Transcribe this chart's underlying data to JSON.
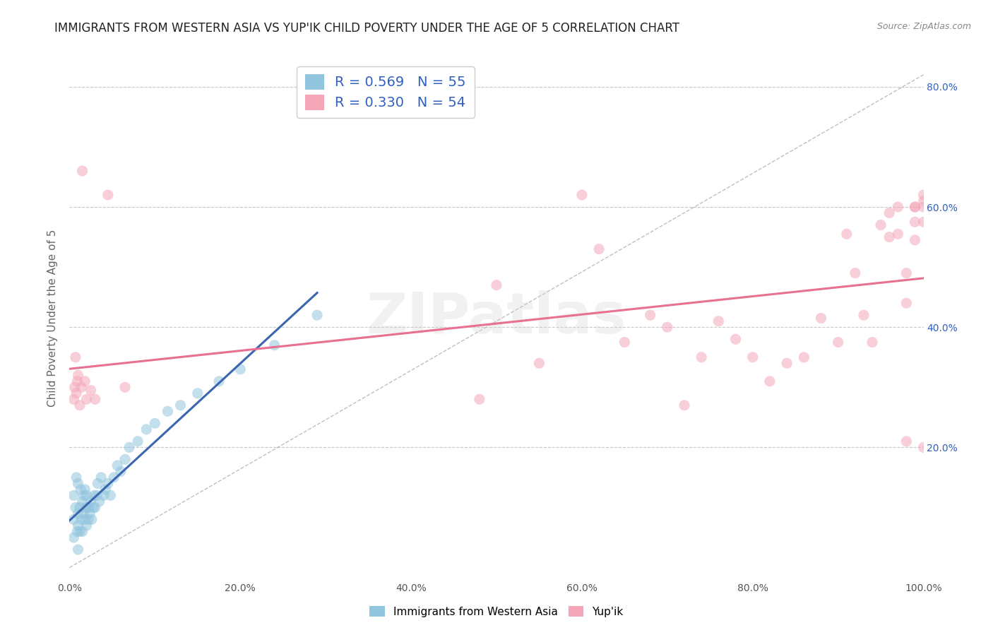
{
  "title": "IMMIGRANTS FROM WESTERN ASIA VS YUP'IK CHILD POVERTY UNDER THE AGE OF 5 CORRELATION CHART",
  "source": "Source: ZipAtlas.com",
  "ylabel": "Child Poverty Under the Age of 5",
  "legend_label1": "Immigrants from Western Asia",
  "legend_label2": "Yup'ik",
  "r1": 0.569,
  "n1": 55,
  "r2": 0.33,
  "n2": 54,
  "color_blue": "#92c5de",
  "color_pink": "#f4a6b8",
  "xlim": [
    0.0,
    1.0
  ],
  "ylim": [
    -0.02,
    0.85
  ],
  "xticks": [
    0.0,
    0.2,
    0.4,
    0.6,
    0.8,
    1.0
  ],
  "yticks": [
    0.0,
    0.2,
    0.4,
    0.6,
    0.8
  ],
  "xticklabels": [
    "0.0%",
    "20.0%",
    "40.0%",
    "60.0%",
    "80.0%",
    "100.0%"
  ],
  "yticklabels_right": [
    "",
    "20.0%",
    "40.0%",
    "60.0%",
    "80.0%"
  ],
  "blue_scatter_x": [
    0.005,
    0.005,
    0.005,
    0.007,
    0.008,
    0.009,
    0.01,
    0.01,
    0.01,
    0.01,
    0.012,
    0.012,
    0.013,
    0.014,
    0.015,
    0.015,
    0.016,
    0.017,
    0.018,
    0.018,
    0.019,
    0.02,
    0.02,
    0.021,
    0.022,
    0.023,
    0.024,
    0.025,
    0.026,
    0.028,
    0.029,
    0.03,
    0.032,
    0.033,
    0.035,
    0.037,
    0.04,
    0.042,
    0.045,
    0.048,
    0.052,
    0.056,
    0.06,
    0.065,
    0.07,
    0.08,
    0.09,
    0.1,
    0.115,
    0.13,
    0.15,
    0.175,
    0.2,
    0.24,
    0.29
  ],
  "blue_scatter_y": [
    0.05,
    0.08,
    0.12,
    0.1,
    0.15,
    0.06,
    0.03,
    0.07,
    0.09,
    0.14,
    0.06,
    0.1,
    0.13,
    0.08,
    0.06,
    0.11,
    0.09,
    0.12,
    0.08,
    0.13,
    0.1,
    0.07,
    0.12,
    0.1,
    0.08,
    0.1,
    0.09,
    0.11,
    0.08,
    0.1,
    0.12,
    0.1,
    0.12,
    0.14,
    0.11,
    0.15,
    0.12,
    0.13,
    0.14,
    0.12,
    0.15,
    0.17,
    0.16,
    0.18,
    0.2,
    0.21,
    0.23,
    0.24,
    0.26,
    0.27,
    0.29,
    0.31,
    0.33,
    0.37,
    0.42
  ],
  "pink_scatter_x": [
    0.005,
    0.006,
    0.007,
    0.008,
    0.009,
    0.01,
    0.012,
    0.014,
    0.015,
    0.018,
    0.02,
    0.025,
    0.03,
    0.045,
    0.065,
    0.48,
    0.5,
    0.55,
    0.6,
    0.62,
    0.65,
    0.68,
    0.7,
    0.72,
    0.74,
    0.76,
    0.78,
    0.8,
    0.82,
    0.84,
    0.86,
    0.88,
    0.9,
    0.91,
    0.92,
    0.93,
    0.94,
    0.95,
    0.96,
    0.96,
    0.97,
    0.97,
    0.98,
    0.98,
    0.98,
    0.99,
    0.99,
    0.99,
    0.99,
    1.0,
    1.0,
    1.0,
    1.0,
    1.0
  ],
  "pink_scatter_y": [
    0.28,
    0.3,
    0.35,
    0.29,
    0.31,
    0.32,
    0.27,
    0.3,
    0.66,
    0.31,
    0.28,
    0.295,
    0.28,
    0.62,
    0.3,
    0.28,
    0.47,
    0.34,
    0.62,
    0.53,
    0.375,
    0.42,
    0.4,
    0.27,
    0.35,
    0.41,
    0.38,
    0.35,
    0.31,
    0.34,
    0.35,
    0.415,
    0.375,
    0.555,
    0.49,
    0.42,
    0.375,
    0.57,
    0.55,
    0.59,
    0.6,
    0.555,
    0.49,
    0.44,
    0.21,
    0.545,
    0.575,
    0.6,
    0.6,
    0.6,
    0.62,
    0.575,
    0.61,
    0.2
  ],
  "watermark_text": "ZIPatlas",
  "background_color": "#ffffff",
  "grid_color": "#c8c8c8",
  "title_fontsize": 12,
  "axis_label_fontsize": 11,
  "tick_fontsize": 10,
  "scatter_size": 120,
  "scatter_alpha": 0.55,
  "regression_line_color_blue": "#3a66b0",
  "regression_line_color_pink": "#e87090",
  "diagonal_line_color": "#b0b0b0",
  "legend_text_color": "#3060c0"
}
